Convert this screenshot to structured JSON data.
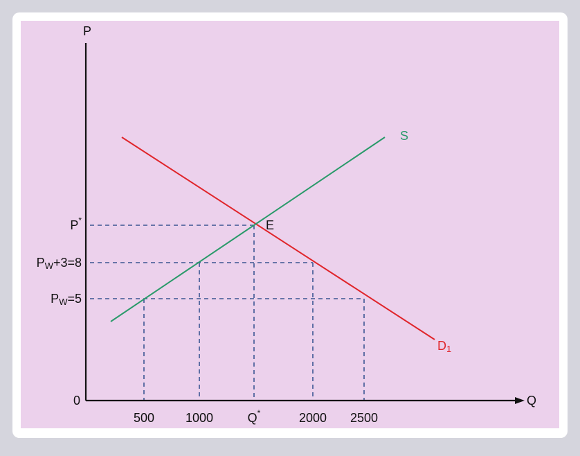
{
  "axes": {
    "y_label": "P",
    "x_label": "Q",
    "origin": "0"
  },
  "price_labels": [
    {
      "base": "P",
      "sup": "*"
    },
    {
      "base": "P",
      "sub": "W",
      "rest": "+3=8"
    },
    {
      "base": "P",
      "sub": "W",
      "rest": "=5"
    }
  ],
  "quantity_labels": [
    {
      "text": "500"
    },
    {
      "text": "1000"
    },
    {
      "base": "Q",
      "sup": "*"
    },
    {
      "text": "2000"
    },
    {
      "text": "2500"
    }
  ],
  "curves": {
    "supply": "S",
    "demand": {
      "base": "D",
      "sub": "1"
    }
  },
  "equilibrium": "E"
}
